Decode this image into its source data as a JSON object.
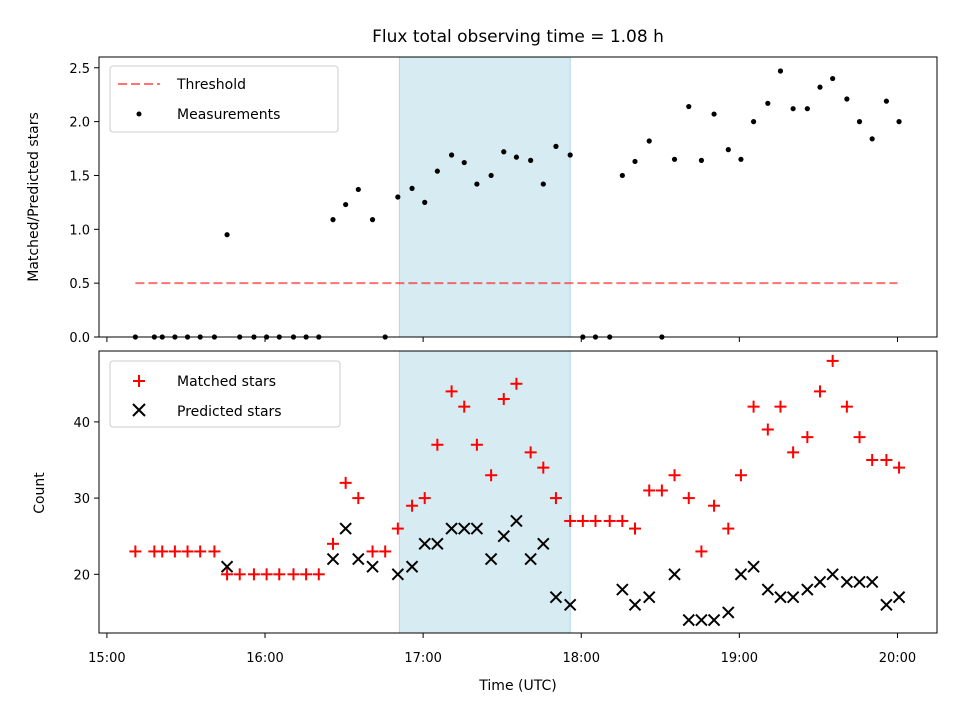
{
  "chart_data": [
    {
      "type": "scatter",
      "title": "Flux total observing time = 1.08 h",
      "ylabel": "Matched/Predicted stars",
      "xlabel": "",
      "x_unit": "hours (UTC)",
      "xlim": [
        14.95,
        20.25
      ],
      "ylim": [
        0,
        2.6
      ],
      "yticks": [
        0.0,
        0.5,
        1.0,
        1.5,
        2.0,
        2.5
      ],
      "ytick_labels": [
        "0.0",
        "0.5",
        "1.0",
        "1.5",
        "2.0",
        "2.5"
      ],
      "shaded_span": [
        16.85,
        17.93
      ],
      "shaded_color": "#add8e6",
      "grid": false,
      "legend_position": "upper-left",
      "threshold": {
        "name": "Threshold",
        "value": 0.5,
        "x_range": [
          15.18,
          20.0
        ],
        "color": "#ff0000"
      },
      "series": [
        {
          "name": "Measurements",
          "marker": "dot",
          "color": "#000000",
          "x": [
            15.18,
            15.3,
            15.35,
            15.43,
            15.51,
            15.59,
            15.68,
            15.76,
            15.84,
            15.93,
            16.01,
            16.09,
            16.18,
            16.26,
            16.34,
            16.43,
            16.51,
            16.59,
            16.68,
            16.76,
            16.84,
            16.93,
            17.01,
            17.09,
            17.18,
            17.26,
            17.34,
            17.43,
            17.51,
            17.59,
            17.68,
            17.76,
            17.84,
            17.93,
            18.01,
            18.09,
            18.18,
            18.26,
            18.34,
            18.43,
            18.51,
            18.59,
            18.68,
            18.76,
            18.84,
            18.93,
            19.01,
            19.09,
            19.18,
            19.26,
            19.34,
            19.43,
            19.51,
            19.59,
            19.68,
            19.76,
            19.84,
            19.93,
            20.01
          ],
          "y": [
            0,
            0,
            0,
            0,
            0,
            0,
            0,
            0.95,
            0,
            0,
            0,
            0,
            0,
            0,
            0,
            1.09,
            1.23,
            1.37,
            1.09,
            0,
            1.3,
            1.38,
            1.25,
            1.54,
            1.69,
            1.62,
            1.42,
            1.5,
            1.72,
            1.67,
            1.64,
            1.42,
            1.77,
            1.69,
            0,
            0,
            0,
            1.5,
            1.63,
            1.82,
            0,
            1.65,
            2.14,
            1.64,
            2.07,
            1.74,
            1.65,
            2.0,
            2.17,
            2.47,
            2.12,
            2.12,
            2.32,
            2.4,
            2.21,
            2.0,
            1.84,
            2.19,
            2.0
          ]
        }
      ]
    },
    {
      "type": "scatter",
      "title": "",
      "ylabel": "Count",
      "xlabel": "Time (UTC)",
      "x_unit": "hours (UTC)",
      "xlim": [
        14.95,
        20.25
      ],
      "xticks": [
        15,
        16,
        17,
        18,
        19,
        20
      ],
      "xtick_labels": [
        "15:00",
        "16:00",
        "17:00",
        "18:00",
        "19:00",
        "20:00"
      ],
      "ylim": [
        12.3,
        49.3
      ],
      "yticks": [
        20,
        30,
        40
      ],
      "ytick_labels": [
        "20",
        "30",
        "40"
      ],
      "shaded_span": [
        16.85,
        17.93
      ],
      "shaded_color": "#add8e6",
      "grid": false,
      "legend_position": "upper-left",
      "series": [
        {
          "name": "Matched stars",
          "marker": "plus",
          "color": "#ff0000",
          "x": [
            15.18,
            15.3,
            15.35,
            15.43,
            15.51,
            15.59,
            15.68,
            15.76,
            15.84,
            15.93,
            16.01,
            16.09,
            16.18,
            16.26,
            16.34,
            16.43,
            16.51,
            16.59,
            16.68,
            16.76,
            16.84,
            16.93,
            17.01,
            17.09,
            17.18,
            17.26,
            17.34,
            17.43,
            17.51,
            17.59,
            17.68,
            17.76,
            17.84,
            17.93,
            18.01,
            18.09,
            18.18,
            18.26,
            18.34,
            18.43,
            18.51,
            18.59,
            18.68,
            18.76,
            18.84,
            18.93,
            19.01,
            19.09,
            19.18,
            19.26,
            19.34,
            19.43,
            19.51,
            19.59,
            19.68,
            19.76,
            19.84,
            19.93,
            20.01
          ],
          "y": [
            23,
            23,
            23,
            23,
            23,
            23,
            23,
            20,
            20,
            20,
            20,
            20,
            20,
            20,
            20,
            24,
            32,
            30,
            23,
            23,
            26,
            29,
            30,
            37,
            44,
            42,
            37,
            33,
            43,
            45,
            36,
            34,
            30,
            27,
            27,
            27,
            27,
            27,
            26,
            31,
            31,
            33,
            30,
            23,
            29,
            26,
            33,
            42,
            39,
            42,
            36,
            38,
            44,
            48,
            42,
            38,
            35,
            35,
            34
          ]
        },
        {
          "name": "Predicted stars",
          "marker": "x",
          "color": "#000000",
          "x": [
            15.76,
            16.43,
            16.51,
            16.59,
            16.68,
            16.84,
            16.93,
            17.01,
            17.09,
            17.18,
            17.26,
            17.34,
            17.43,
            17.51,
            17.59,
            17.68,
            17.76,
            17.84,
            17.93,
            18.26,
            18.34,
            18.43,
            18.59,
            18.68,
            18.76,
            18.84,
            18.93,
            19.01,
            19.09,
            19.18,
            19.26,
            19.34,
            19.43,
            19.51,
            19.59,
            19.68,
            19.76,
            19.84,
            19.93,
            20.01
          ],
          "y": [
            21,
            22,
            26,
            22,
            21,
            20,
            21,
            24,
            24,
            26,
            26,
            26,
            22,
            25,
            27,
            22,
            24,
            17,
            16,
            18,
            16,
            17,
            20,
            14,
            14,
            14,
            15,
            20,
            21,
            18,
            17,
            17,
            18,
            19,
            20,
            19,
            19,
            19,
            16,
            17
          ]
        }
      ]
    }
  ]
}
